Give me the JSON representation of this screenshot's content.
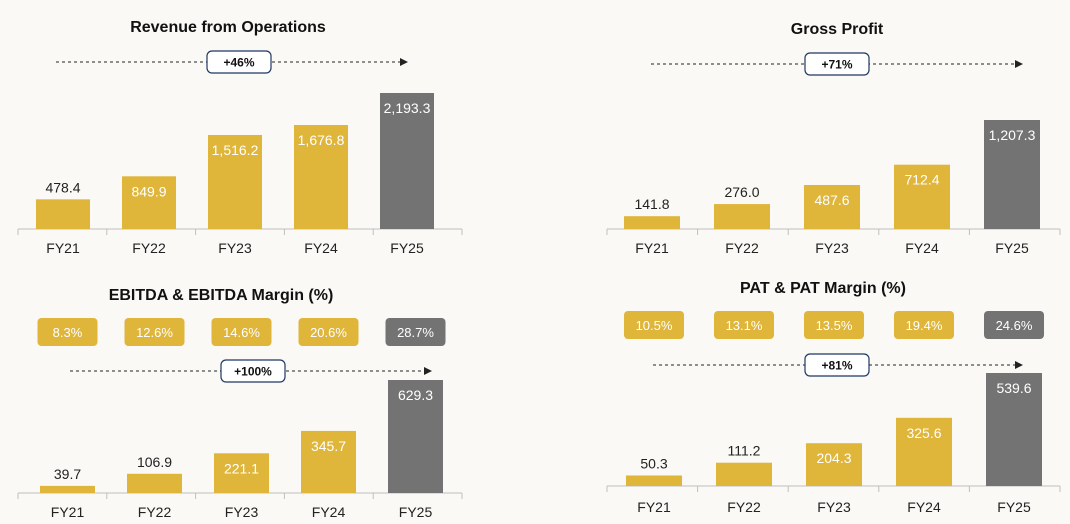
{
  "colors": {
    "gold": "#dfb53a",
    "grey": "#737373",
    "axis": "#bfbfbf",
    "badge_border": "#1f3864"
  },
  "chart_data": [
    {
      "id": "p-rev",
      "type": "bar",
      "title": "Revenue from Operations",
      "growth_label": "+46%",
      "categories": [
        "FY21",
        "FY22",
        "FY23",
        "FY24",
        "FY25"
      ],
      "values": [
        478.4,
        849.9,
        1516.2,
        1676.8,
        2193.3
      ],
      "value_labels": [
        "478.4",
        "849.9",
        "1,516.2",
        "1,676.8",
        "2,193.3"
      ],
      "highlight_last": true
    },
    {
      "id": "p-gp",
      "type": "bar",
      "title": "Gross Profit",
      "growth_label": "+71%",
      "categories": [
        "FY21",
        "FY22",
        "FY23",
        "FY24",
        "FY25"
      ],
      "values": [
        141.8,
        276.0,
        487.6,
        712.4,
        1207.3
      ],
      "value_labels": [
        "141.8",
        "276.0",
        "487.6",
        "712.4",
        "1,207.3"
      ],
      "highlight_last": true
    },
    {
      "id": "p-ebitda",
      "type": "bar",
      "title": "EBITDA & EBITDA Margin (%)",
      "growth_label": "+100%",
      "margins": [
        "8.3%",
        "12.6%",
        "14.6%",
        "20.6%",
        "28.7%"
      ],
      "categories": [
        "FY21",
        "FY22",
        "FY23",
        "FY24",
        "FY25"
      ],
      "values": [
        39.7,
        106.9,
        221.1,
        345.7,
        629.3
      ],
      "value_labels": [
        "39.7",
        "106.9",
        "221.1",
        "345.7",
        "629.3"
      ],
      "highlight_last": true
    },
    {
      "id": "p-pat",
      "type": "bar",
      "title": "PAT & PAT Margin (%)",
      "growth_label": "+81%",
      "margins": [
        "10.5%",
        "13.1%",
        "13.5%",
        "19.4%",
        "24.6%"
      ],
      "categories": [
        "FY21",
        "FY22",
        "FY23",
        "FY24",
        "FY25"
      ],
      "values": [
        50.3,
        111.2,
        204.3,
        325.6,
        539.6
      ],
      "value_labels": [
        "50.3",
        "111.2",
        "204.3",
        "325.6",
        "539.6"
      ],
      "highlight_last": true
    }
  ]
}
